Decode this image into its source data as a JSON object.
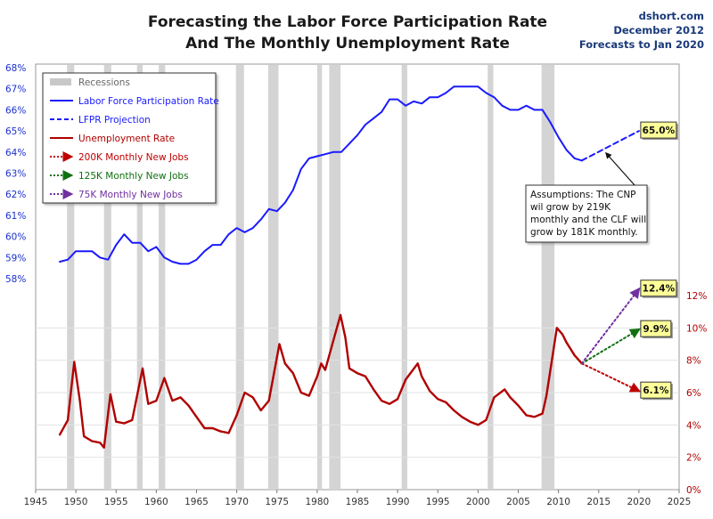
{
  "chart_data": {
    "type": "line",
    "title": "Forecasting the Labor Force Participation Rate",
    "subtitle": "And The Monthly Unemployment Rate",
    "source": "dshort.com",
    "date_note": "December 2012",
    "forecast_note": "Forecasts to Jan 2020",
    "x_axis": {
      "range": [
        1945,
        2025
      ],
      "ticks": [
        1945,
        1950,
        1955,
        1960,
        1965,
        1970,
        1975,
        1980,
        1985,
        1990,
        1995,
        2000,
        2005,
        2010,
        2015,
        2020,
        2025
      ]
    },
    "y_left": {
      "range": [
        58,
        68
      ],
      "ticks": [
        "58%",
        "59%",
        "60%",
        "61%",
        "62%",
        "63%",
        "64%",
        "65%",
        "66%",
        "67%",
        "68%"
      ]
    },
    "y_right": {
      "range": [
        0,
        12
      ],
      "ticks": [
        "0%",
        "2%",
        "4%",
        "6%",
        "8%",
        "10%",
        "12%"
      ]
    },
    "recessions": [
      [
        1948.9,
        1949.8
      ],
      [
        1953.5,
        1954.4
      ],
      [
        1957.6,
        1958.3
      ],
      [
        1960.3,
        1961.1
      ],
      [
        1969.9,
        1970.9
      ],
      [
        1973.9,
        1975.2
      ],
      [
        1980.0,
        1980.6
      ],
      [
        1981.5,
        1982.9
      ],
      [
        1990.5,
        1991.2
      ],
      [
        2001.2,
        2001.9
      ],
      [
        2007.9,
        2009.5
      ]
    ],
    "legend": {
      "recessions": "Recessions",
      "lfpr": "Labor Force Participation Rate",
      "lfpr_projection": "LFPR Projection",
      "unemployment": "Unemployment Rate",
      "jobs_200k": "200K Monthly New Jobs",
      "jobs_125k": "125K Monthly New Jobs",
      "jobs_75k": "75K Monthly New Jobs"
    },
    "series": [
      {
        "name": "Labor Force Participation Rate",
        "axis": "left",
        "color": "#1a1aff",
        "x": [
          1948.0,
          1949.0,
          1950.0,
          1951.0,
          1952.0,
          1953.0,
          1954.0,
          1955.0,
          1956.0,
          1957.0,
          1958.0,
          1959.0,
          1960.0,
          1961.0,
          1962.0,
          1963.0,
          1964.0,
          1965.0,
          1966.0,
          1967.0,
          1968.0,
          1969.0,
          1970.0,
          1971.0,
          1972.0,
          1973.0,
          1974.0,
          1975.0,
          1976.0,
          1977.0,
          1978.0,
          1979.0,
          1980.0,
          1981.0,
          1982.0,
          1983.0,
          1984.0,
          1985.0,
          1986.0,
          1987.0,
          1988.0,
          1989.0,
          1990.0,
          1991.0,
          1992.0,
          1993.0,
          1994.0,
          1995.0,
          1996.0,
          1997.0,
          1998.0,
          1999.0,
          2000.0,
          2001.0,
          2002.0,
          2003.0,
          2004.0,
          2005.0,
          2006.0,
          2007.0,
          2008.0,
          2009.0,
          2010.0,
          2011.0,
          2012.0,
          2012.9
        ],
        "y": [
          58.8,
          58.9,
          59.3,
          59.3,
          59.3,
          59.0,
          58.9,
          59.6,
          60.1,
          59.7,
          59.7,
          59.3,
          59.5,
          59.0,
          58.8,
          58.7,
          58.7,
          58.9,
          59.3,
          59.6,
          59.6,
          60.1,
          60.4,
          60.2,
          60.4,
          60.8,
          61.3,
          61.2,
          61.6,
          62.2,
          63.2,
          63.7,
          63.8,
          63.9,
          64.0,
          64.0,
          64.4,
          64.8,
          65.3,
          65.6,
          65.9,
          66.5,
          66.5,
          66.2,
          66.4,
          66.3,
          66.6,
          66.6,
          66.8,
          67.1,
          67.1,
          67.1,
          67.1,
          66.8,
          66.6,
          66.2,
          66.0,
          66.0,
          66.2,
          66.0,
          66.0,
          65.4,
          64.7,
          64.1,
          63.7,
          63.6
        ]
      },
      {
        "name": "LFPR Projection",
        "axis": "left",
        "color": "#1a1aff",
        "x": [
          2012.9,
          2020.0
        ],
        "y": [
          63.6,
          65.0
        ],
        "label": "65.0%"
      },
      {
        "name": "Unemployment Rate",
        "axis": "right",
        "color": "#b00000",
        "x": [
          1948.0,
          1949.0,
          1949.8,
          1950.5,
          1951.0,
          1952.0,
          1953.0,
          1953.5,
          1954.3,
          1955.0,
          1956.0,
          1957.0,
          1958.3,
          1959.0,
          1960.0,
          1961.0,
          1962.0,
          1963.0,
          1964.0,
          1965.0,
          1966.0,
          1967.0,
          1968.0,
          1969.0,
          1970.0,
          1971.0,
          1972.0,
          1973.0,
          1974.0,
          1975.3,
          1976.0,
          1977.0,
          1978.0,
          1979.0,
          1980.0,
          1980.5,
          1981.0,
          1982.9,
          1983.5,
          1984.0,
          1985.0,
          1986.0,
          1987.0,
          1988.0,
          1989.0,
          1990.0,
          1991.0,
          1992.5,
          1993.0,
          1994.0,
          1995.0,
          1996.0,
          1997.0,
          1998.0,
          1999.0,
          2000.0,
          2001.0,
          2002.0,
          2003.3,
          2004.0,
          2005.0,
          2006.0,
          2007.0,
          2008.0,
          2008.5,
          2009.8,
          2010.5,
          2011.0,
          2012.0,
          2012.9
        ],
        "y": [
          3.4,
          4.3,
          7.9,
          5.5,
          3.3,
          3.0,
          2.9,
          2.6,
          5.9,
          4.2,
          4.1,
          4.3,
          7.5,
          5.3,
          5.5,
          6.9,
          5.5,
          5.7,
          5.2,
          4.5,
          3.8,
          3.8,
          3.6,
          3.5,
          4.6,
          6.0,
          5.7,
          4.9,
          5.5,
          9.0,
          7.8,
          7.2,
          6.0,
          5.8,
          7.0,
          7.8,
          7.4,
          10.8,
          9.4,
          7.5,
          7.2,
          7.0,
          6.2,
          5.5,
          5.3,
          5.6,
          6.8,
          7.8,
          7.0,
          6.1,
          5.6,
          5.4,
          4.9,
          4.5,
          4.2,
          4.0,
          4.3,
          5.7,
          6.2,
          5.7,
          5.2,
          4.6,
          4.5,
          4.7,
          5.8,
          10.0,
          9.6,
          9.1,
          8.3,
          7.8
        ]
      },
      {
        "name": "200K Monthly New Jobs",
        "axis": "right",
        "color": "#c00000",
        "x": [
          2012.9,
          2020.0
        ],
        "y": [
          7.8,
          6.1
        ],
        "label": "6.1%"
      },
      {
        "name": "125K Monthly New Jobs",
        "axis": "right",
        "color": "#107010",
        "x": [
          2012.9,
          2020.0
        ],
        "y": [
          7.8,
          9.9
        ],
        "label": "9.9%"
      },
      {
        "name": "75K Monthly New Jobs",
        "axis": "right",
        "color": "#7030a0",
        "x": [
          2012.9,
          2020.0
        ],
        "y": [
          7.8,
          12.4
        ],
        "label": "12.4%"
      }
    ],
    "annotation": {
      "lines": [
        "Assumptions: The CNP",
        "wil grow by 219K",
        "monthly and the CLF will",
        "grow by 181K monthly."
      ]
    }
  }
}
